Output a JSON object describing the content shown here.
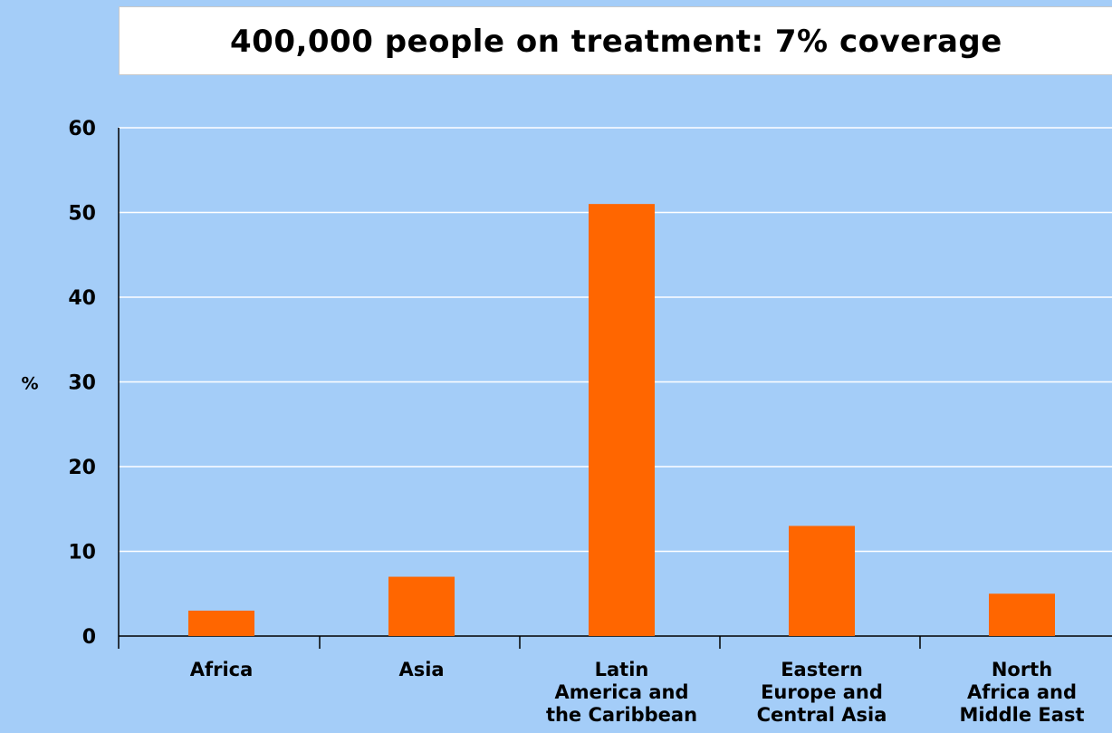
{
  "colors": {
    "background": "#A4CDF8",
    "bar": "#FF6600",
    "gridline": "#FFFFFF",
    "axis": "#000000"
  },
  "chart_data": {
    "type": "bar",
    "title": "400,000 people on treatment: 7% coverage",
    "ylabel": "%",
    "xlabel": "",
    "ylim": [
      0,
      60
    ],
    "yticks": [
      0,
      10,
      20,
      30,
      40,
      50,
      60
    ],
    "grid": true,
    "categories": [
      [
        "Africa"
      ],
      [
        "Asia"
      ],
      [
        "Latin",
        "America and",
        "the Caribbean"
      ],
      [
        "Eastern",
        "Europe and",
        "Central Asia"
      ],
      [
        "North",
        "Africa and",
        "Middle East"
      ]
    ],
    "values": [
      3,
      7,
      51,
      13,
      5
    ]
  }
}
